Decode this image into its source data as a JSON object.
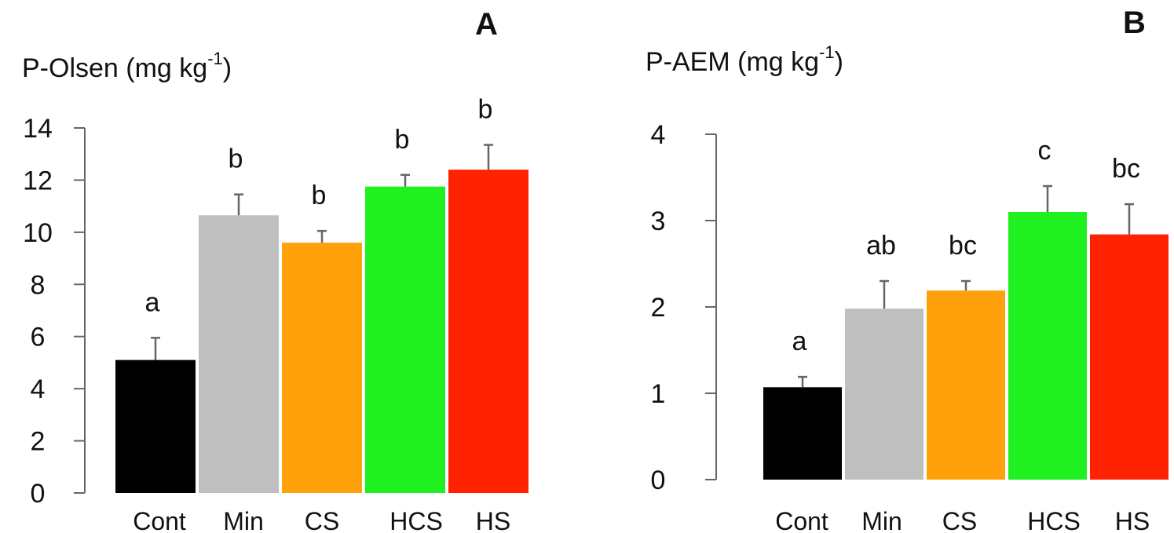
{
  "chart_data": [
    {
      "type": "bar",
      "panel": "A",
      "ylabel_prefix": "P-Olsen (mg kg",
      "ylabel_sup": "-1",
      "ylabel_suffix": ")",
      "ylim": [
        0,
        14
      ],
      "yticks": [
        0,
        2,
        4,
        6,
        8,
        10,
        12,
        14
      ],
      "categories": [
        "Cont",
        "Min",
        "CS",
        "HCS",
        "HS"
      ],
      "values": [
        5.1,
        10.65,
        9.6,
        11.75,
        12.4
      ],
      "errors": [
        0.85,
        0.8,
        0.45,
        0.45,
        0.95
      ],
      "significance": [
        "a",
        "b",
        "b",
        "b",
        "b"
      ],
      "colors": [
        "#000000",
        "#bfbfbf",
        "#ffa10a",
        "#1ff01f",
        "#ff2200"
      ]
    },
    {
      "type": "bar",
      "panel": "B",
      "ylabel_prefix": "P-AEM (mg kg",
      "ylabel_sup": "-1",
      "ylabel_suffix": ")",
      "ylim": [
        0,
        4
      ],
      "yticks": [
        0,
        1,
        2,
        3,
        4
      ],
      "categories": [
        "Cont",
        "Min",
        "CS",
        "HCS",
        "HS"
      ],
      "values": [
        1.07,
        1.98,
        2.19,
        3.1,
        2.84
      ],
      "errors": [
        0.12,
        0.32,
        0.11,
        0.3,
        0.35
      ],
      "significance": [
        "a",
        "ab",
        "bc",
        "c",
        "bc"
      ],
      "colors": [
        "#000000",
        "#bfbfbf",
        "#ffa10a",
        "#1ff01f",
        "#ff2200"
      ]
    }
  ]
}
